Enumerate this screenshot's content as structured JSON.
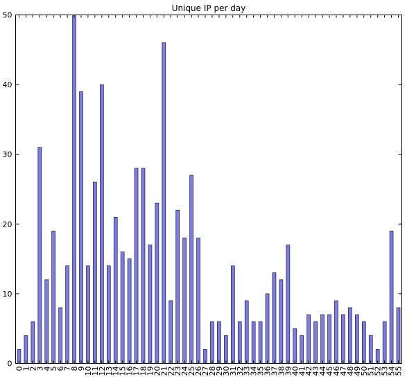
{
  "chart_data": {
    "type": "bar",
    "title": "Unique IP per day",
    "xlabel": "",
    "ylabel": "",
    "ylim": [
      0,
      50
    ],
    "yticks": [
      0,
      10,
      20,
      30,
      40,
      50
    ],
    "categories": [
      "0",
      "1",
      "2",
      "3",
      "4",
      "5",
      "6",
      "7",
      "8",
      "9",
      "10",
      "11",
      "12",
      "13",
      "14",
      "15",
      "16",
      "17",
      "18",
      "19",
      "20",
      "21",
      "22",
      "23",
      "24",
      "25",
      "26",
      "27",
      "28",
      "29",
      "30",
      "31",
      "32",
      "33",
      "34",
      "35",
      "36",
      "37",
      "38",
      "39",
      "40",
      "41",
      "42",
      "43",
      "44",
      "45",
      "46",
      "47",
      "48",
      "49",
      "50",
      "51",
      "52",
      "53",
      "54",
      "55"
    ],
    "values": [
      2,
      4,
      6,
      31,
      12,
      19,
      8,
      14,
      50,
      39,
      14,
      26,
      40,
      14,
      21,
      16,
      15,
      28,
      28,
      17,
      23,
      46,
      9,
      22,
      18,
      27,
      18,
      2,
      6,
      6,
      4,
      14,
      6,
      9,
      6,
      6,
      10,
      13,
      12,
      17,
      5,
      4,
      7,
      6,
      7,
      7,
      9,
      7,
      8,
      7,
      6,
      4,
      2,
      6,
      19,
      8
    ],
    "bar_color": "#7b7bf0",
    "bar_edge_color": "#000000",
    "grid": false,
    "legend": "none"
  }
}
